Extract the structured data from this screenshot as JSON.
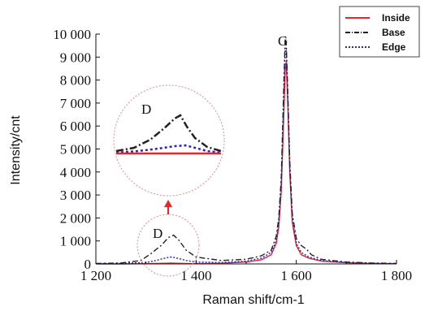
{
  "chart_data": {
    "type": "line",
    "xlabel": "Raman shift/cm-1",
    "ylabel": "Intensity/cnt",
    "xlim": [
      1200,
      1800
    ],
    "ylim": [
      0,
      10000
    ],
    "x_ticks": [
      1200,
      1400,
      1600,
      1800
    ],
    "x_tick_labels": [
      "1 200",
      "1 400",
      "1 600",
      "1 800"
    ],
    "y_ticks": [
      0,
      1000,
      2000,
      3000,
      4000,
      5000,
      6000,
      7000,
      8000,
      9000,
      10000
    ],
    "y_tick_labels": [
      "0",
      "1 000",
      "2 000",
      "3 000",
      "4 000",
      "5 000",
      "6 000",
      "7 000",
      "8 000",
      "9 000",
      "10 000"
    ],
    "legend_position": "top-right",
    "grid": false,
    "series": [
      {
        "name": "Inside",
        "color": "#e8262a",
        "style": "solid",
        "x": [
          1200,
          1250,
          1300,
          1320,
          1340,
          1350,
          1360,
          1380,
          1400,
          1450,
          1500,
          1530,
          1550,
          1560,
          1565,
          1570,
          1575,
          1578,
          1580,
          1583,
          1587,
          1592,
          1600,
          1610,
          1625,
          1650,
          1700,
          1750,
          1800
        ],
        "y": [
          0,
          0,
          10,
          20,
          30,
          35,
          30,
          20,
          10,
          30,
          80,
          180,
          400,
          900,
          1600,
          3200,
          6500,
          8500,
          8800,
          7000,
          4000,
          1800,
          800,
          400,
          250,
          120,
          50,
          20,
          10
        ]
      },
      {
        "name": "Base",
        "color": "#222222",
        "style": "dashdot",
        "x": [
          1200,
          1250,
          1290,
          1310,
          1330,
          1345,
          1355,
          1365,
          1380,
          1400,
          1450,
          1500,
          1530,
          1550,
          1560,
          1565,
          1570,
          1575,
          1578,
          1580,
          1583,
          1587,
          1592,
          1600,
          1610,
          1620,
          1630,
          1650,
          1700,
          1750,
          1800
        ],
        "y": [
          20,
          40,
          150,
          450,
          800,
          1150,
          1250,
          1050,
          600,
          300,
          150,
          200,
          350,
          600,
          1200,
          2000,
          3800,
          7800,
          9900,
          9600,
          7500,
          4500,
          2200,
          1100,
          800,
          650,
          400,
          200,
          80,
          40,
          20
        ]
      },
      {
        "name": "Edge",
        "color": "#2323d6",
        "style": "dotted",
        "x": [
          1200,
          1250,
          1300,
          1320,
          1340,
          1350,
          1360,
          1380,
          1400,
          1450,
          1500,
          1530,
          1550,
          1560,
          1565,
          1570,
          1575,
          1578,
          1580,
          1583,
          1587,
          1592,
          1600,
          1610,
          1625,
          1650,
          1700,
          1750,
          1800
        ],
        "y": [
          10,
          20,
          60,
          150,
          260,
          300,
          260,
          150,
          80,
          60,
          120,
          250,
          500,
          1000,
          1800,
          3500,
          7200,
          9400,
          9300,
          7200,
          4200,
          2000,
          900,
          500,
          300,
          150,
          60,
          25,
          10
        ]
      }
    ],
    "annotations": [
      "G",
      "D",
      "D"
    ]
  }
}
